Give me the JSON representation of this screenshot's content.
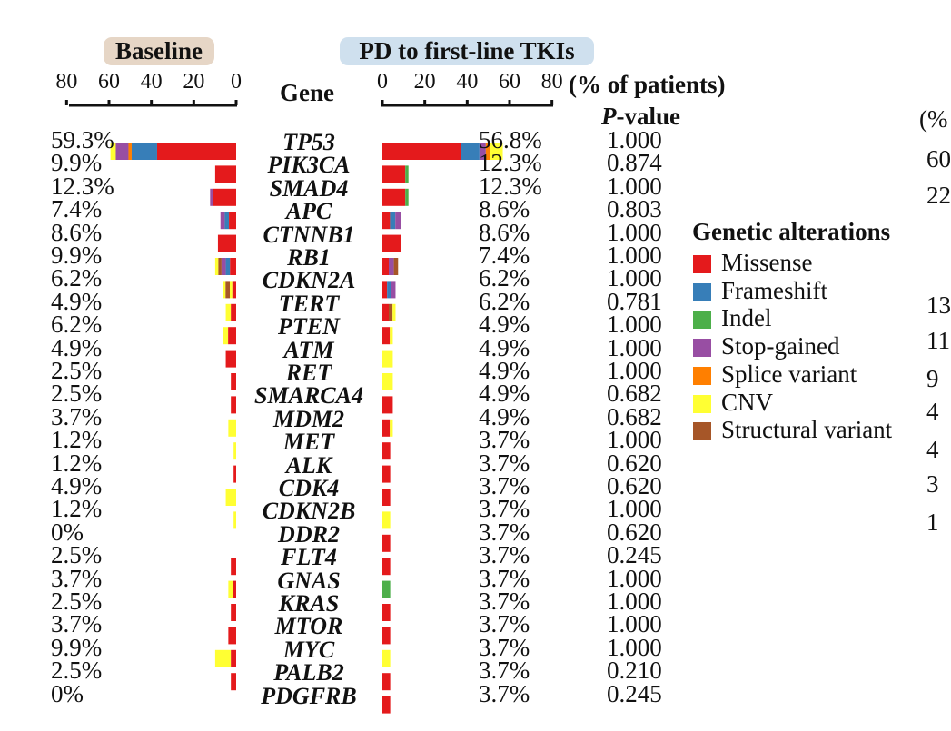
{
  "panels": {
    "baseline_label": "Baseline",
    "pd_label": "PD to first-line TKIs",
    "gene_header": "Gene",
    "pct_patients_label": "(% of patients)",
    "pvalue_header_italic": "P",
    "pvalue_header_rest": "-value"
  },
  "colors": {
    "missense": "#e41a1c",
    "frameshift": "#377eb8",
    "indel": "#4daf4a",
    "stop_gained": "#984ea3",
    "splice_variant": "#ff7f00",
    "cnv": "#ffff33",
    "structural_variant": "#a65628"
  },
  "legend": {
    "title": "Genetic alterations",
    "items": [
      {
        "label": "Missense",
        "color": "#e41a1c"
      },
      {
        "label": "Frameshift",
        "color": "#377eb8"
      },
      {
        "label": "Indel",
        "color": "#4daf4a"
      },
      {
        "label": "Stop-gained",
        "color": "#984ea3"
      },
      {
        "label": "Splice variant",
        "color": "#ff7f00"
      },
      {
        "label": "CNV",
        "color": "#ffff33"
      },
      {
        "label": "Structural variant",
        "color": "#a65628"
      }
    ]
  },
  "right_cut": {
    "header": "(%",
    "values": [
      "60",
      "22",
      "13",
      "11",
      "9",
      "4",
      "4",
      "3",
      "1"
    ]
  },
  "chart_data": {
    "type": "bar",
    "xlim": [
      0,
      80
    ],
    "baseline_ticks": [
      "80",
      "60",
      "40",
      "20",
      "0"
    ],
    "pd_ticks": [
      "0",
      "20",
      "40",
      "60",
      "80"
    ],
    "categories": [
      "TP53",
      "PIK3CA",
      "SMAD4",
      "APC",
      "CTNNB1",
      "RB1",
      "CDKN2A",
      "TERT",
      "PTEN",
      "ATM",
      "RET",
      "SMARCA4",
      "MDM2",
      "MET",
      "ALK",
      "CDK4",
      "CDKN2B",
      "DDR2",
      "FLT4",
      "GNAS",
      "KRAS",
      "MTOR",
      "MYC",
      "PALB2",
      "PDGFRB"
    ],
    "baseline": {
      "values": [
        59.3,
        9.9,
        12.3,
        7.4,
        8.6,
        9.9,
        6.2,
        4.9,
        6.2,
        4.9,
        2.5,
        2.5,
        3.7,
        1.2,
        1.2,
        4.9,
        1.2,
        0,
        2.5,
        3.7,
        2.5,
        3.7,
        9.9,
        2.5,
        0
      ],
      "labels": [
        "59.3%",
        "9.9%",
        "12.3%",
        "7.4%",
        "8.6%",
        "9.9%",
        "6.2%",
        "4.9%",
        "6.2%",
        "4.9%",
        "2.5%",
        "2.5%",
        "3.7%",
        "1.2%",
        "1.2%",
        "4.9%",
        "1.2%",
        "0%",
        "2.5%",
        "3.7%",
        "2.5%",
        "3.7%",
        "9.9%",
        "2.5%",
        "0%"
      ]
    },
    "pd": {
      "values": [
        56.8,
        12.3,
        12.3,
        8.6,
        8.6,
        7.4,
        6.2,
        6.2,
        4.9,
        4.9,
        4.9,
        4.9,
        4.9,
        3.7,
        3.7,
        3.7,
        3.7,
        3.7,
        3.7,
        3.7,
        3.7,
        3.7,
        3.7,
        3.7,
        3.7
      ],
      "labels": [
        "56.8%",
        "12.3%",
        "12.3%",
        "8.6%",
        "8.6%",
        "7.4%",
        "6.2%",
        "6.2%",
        "4.9%",
        "4.9%",
        "4.9%",
        "4.9%",
        "4.9%",
        "3.7%",
        "3.7%",
        "3.7%",
        "3.7%",
        "3.7%",
        "3.7%",
        "3.7%",
        "3.7%",
        "3.7%",
        "3.7%",
        "3.7%",
        "3.7%"
      ]
    },
    "pvalues": [
      "1.000",
      "0.874",
      "1.000",
      "0.803",
      "1.000",
      "1.000",
      "1.000",
      "0.781",
      "1.000",
      "1.000",
      "1.000",
      "0.682",
      "0.682",
      "1.000",
      "0.620",
      "0.620",
      "1.000",
      "0.620",
      "0.245",
      "1.000",
      "1.000",
      "1.000",
      "1.000",
      "0.210",
      "0.245"
    ],
    "baseline_composition": [
      [
        [
          "cnv",
          2.5
        ],
        [
          "stop_gained",
          6
        ],
        [
          "splice_variant",
          1.5
        ],
        [
          "frameshift",
          12
        ],
        [
          "missense",
          37.3
        ]
      ],
      [
        [
          "missense",
          9.9
        ]
      ],
      [
        [
          "stop_gained",
          1.5
        ],
        [
          "missense",
          10.8
        ]
      ],
      [
        [
          "stop_gained",
          2
        ],
        [
          "frameshift",
          2
        ],
        [
          "missense",
          3.4
        ]
      ],
      [
        [
          "missense",
          8.6
        ]
      ],
      [
        [
          "cnv",
          1.5
        ],
        [
          "structural_variant",
          1.5
        ],
        [
          "stop_gained",
          2
        ],
        [
          "frameshift",
          2
        ],
        [
          "missense",
          2.9
        ]
      ],
      [
        [
          "cnv",
          1.2
        ],
        [
          "structural_variant",
          2
        ],
        [
          "cnv",
          1.2
        ],
        [
          "missense",
          1.8
        ]
      ],
      [
        [
          "cnv",
          2.4
        ],
        [
          "missense",
          2.5
        ]
      ],
      [
        [
          "cnv",
          2.4
        ],
        [
          "missense",
          3.8
        ]
      ],
      [
        [
          "missense",
          4.9
        ]
      ],
      [
        [
          "missense",
          2.5
        ]
      ],
      [
        [
          "missense",
          2.5
        ]
      ],
      [
        [
          "cnv",
          3.7
        ]
      ],
      [
        [
          "cnv",
          1.2
        ]
      ],
      [
        [
          "missense",
          1.2
        ]
      ],
      [
        [
          "cnv",
          4.9
        ]
      ],
      [
        [
          "cnv",
          1.2
        ]
      ],
      [],
      [
        [
          "missense",
          2.5
        ]
      ],
      [
        [
          "cnv",
          2.4
        ],
        [
          "missense",
          1.3
        ]
      ],
      [
        [
          "missense",
          2.5
        ]
      ],
      [
        [
          "missense",
          3.7
        ]
      ],
      [
        [
          "cnv",
          7.4
        ],
        [
          "missense",
          2.5
        ]
      ],
      [
        [
          "missense",
          2.5
        ]
      ],
      []
    ],
    "pd_composition": [
      [
        [
          "missense",
          37
        ],
        [
          "frameshift",
          8.8
        ],
        [
          "stop_gained",
          3
        ],
        [
          "splice_variant",
          2
        ],
        [
          "cnv",
          6
        ]
      ],
      [
        [
          "missense",
          10.8
        ],
        [
          "indel",
          1.5
        ]
      ],
      [
        [
          "missense",
          10.8
        ],
        [
          "indel",
          1.5
        ]
      ],
      [
        [
          "missense",
          3.6
        ],
        [
          "frameshift",
          2.5
        ],
        [
          "stop_gained",
          2.5
        ]
      ],
      [
        [
          "missense",
          8.6
        ]
      ],
      [
        [
          "missense",
          3
        ],
        [
          "stop_gained",
          2.4
        ],
        [
          "structural_variant",
          2
        ]
      ],
      [
        [
          "missense",
          2.2
        ],
        [
          "frameshift",
          2
        ],
        [
          "stop_gained",
          2
        ]
      ],
      [
        [
          "missense",
          3
        ],
        [
          "structural_variant",
          1.8
        ],
        [
          "cnv",
          1.4
        ]
      ],
      [
        [
          "missense",
          3.5
        ],
        [
          "cnv",
          1.4
        ]
      ],
      [
        [
          "cnv",
          4.9
        ]
      ],
      [
        [
          "cnv",
          4.9
        ]
      ],
      [
        [
          "missense",
          4.9
        ]
      ],
      [
        [
          "missense",
          3.5
        ],
        [
          "cnv",
          1.4
        ]
      ],
      [
        [
          "missense",
          3.7
        ]
      ],
      [
        [
          "missense",
          3.7
        ]
      ],
      [
        [
          "missense",
          3.7
        ]
      ],
      [
        [
          "cnv",
          3.7
        ]
      ],
      [
        [
          "missense",
          3.7
        ]
      ],
      [
        [
          "missense",
          3.7
        ]
      ],
      [
        [
          "indel",
          3.7
        ]
      ],
      [
        [
          "missense",
          3.7
        ]
      ],
      [
        [
          "missense",
          3.7
        ]
      ],
      [
        [
          "cnv",
          3.7
        ]
      ],
      [
        [
          "missense",
          3.7
        ]
      ],
      [
        [
          "missense",
          3.7
        ]
      ]
    ]
  }
}
